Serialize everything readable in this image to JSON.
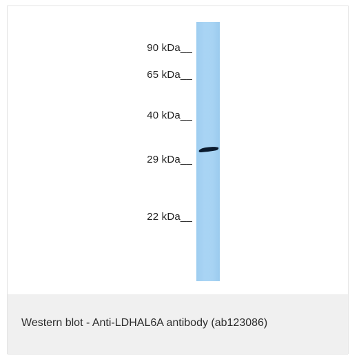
{
  "figure": {
    "markers": [
      {
        "label": "90 kDa__"
      },
      {
        "label": "65 kDa__"
      },
      {
        "label": "40 kDa__"
      },
      {
        "label": "29 kDa__"
      },
      {
        "label": "22 kDa__"
      }
    ],
    "lane_color": "#a7d3f3",
    "band_color": "#0a1a2e"
  },
  "caption": {
    "text": "Western blot - Anti-LDHAL6A antibody (ab123086)"
  }
}
